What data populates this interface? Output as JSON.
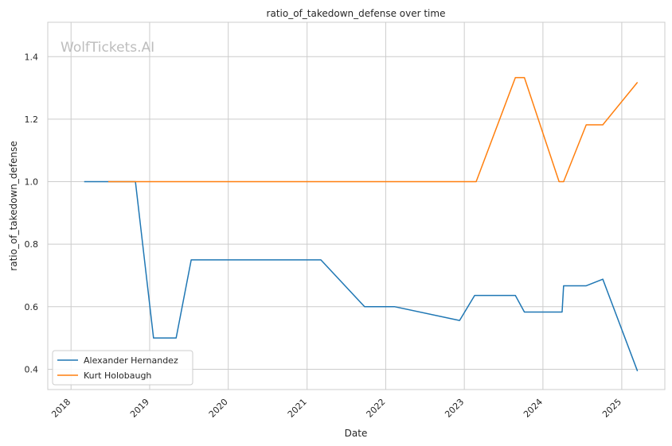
{
  "chart_data": {
    "type": "line",
    "title": "ratio_of_takedown_defense over time",
    "xlabel": "Date",
    "ylabel": "ratio_of_takedown_defense",
    "watermark": "WolfTickets.AI",
    "x_range": [
      "2017-09-15",
      "2025-07-20"
    ],
    "ylim": [
      0.335,
      1.51
    ],
    "x_ticks": [
      "2018",
      "2019",
      "2020",
      "2021",
      "2022",
      "2023",
      "2024",
      "2025"
    ],
    "y_ticks": [
      0.4,
      0.6,
      0.8,
      1.0,
      1.2,
      1.4
    ],
    "y_tick_labels": [
      "0.4",
      "0.6",
      "0.8",
      "1.0",
      "1.2",
      "1.4"
    ],
    "grid": true,
    "legend": "lower-left",
    "series": [
      {
        "name": "Alexander Hernandez",
        "color": "#1f77b4",
        "points": [
          [
            "2018-03-03",
            1.0
          ],
          [
            "2018-07-01",
            1.0
          ],
          [
            "2018-10-27",
            1.0
          ],
          [
            "2019-01-19",
            0.5
          ],
          [
            "2019-05-04",
            0.5
          ],
          [
            "2019-07-13",
            0.75
          ],
          [
            "2021-03-06",
            0.75
          ],
          [
            "2021-09-25",
            0.6
          ],
          [
            "2022-02-12",
            0.6
          ],
          [
            "2022-12-10",
            0.556
          ],
          [
            "2023-02-18",
            0.636
          ],
          [
            "2023-08-26",
            0.636
          ],
          [
            "2023-10-07",
            0.583
          ],
          [
            "2024-03-30",
            0.583
          ],
          [
            "2024-04-06",
            0.667
          ],
          [
            "2024-07-20",
            0.667
          ],
          [
            "2024-10-05",
            0.688
          ],
          [
            "2025-03-15",
            0.394
          ]
        ]
      },
      {
        "name": "Kurt Holobaugh",
        "color": "#ff7f0e",
        "points": [
          [
            "2018-06-23",
            1.0
          ],
          [
            "2023-02-25",
            1.0
          ],
          [
            "2023-08-26",
            1.333
          ],
          [
            "2023-10-07",
            1.333
          ],
          [
            "2024-03-16",
            1.0
          ],
          [
            "2024-04-06",
            1.0
          ],
          [
            "2024-07-20",
            1.182
          ],
          [
            "2024-10-05",
            1.182
          ],
          [
            "2025-03-15",
            1.318
          ]
        ]
      }
    ]
  }
}
